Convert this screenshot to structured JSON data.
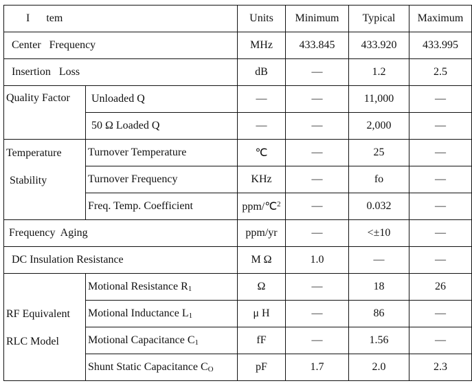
{
  "header": {
    "item": "I      tem",
    "units": "Units",
    "min": "Minimum",
    "typ": "Typical",
    "max": "Maximum"
  },
  "dash": "—",
  "rows": {
    "center_frequency": {
      "label": "Center   Frequency",
      "units": "MHz",
      "min": "433.845",
      "typ": "433.920",
      "max": "433.995"
    },
    "insertion_loss": {
      "label": "Insertion   Loss",
      "units": "dB",
      "min": "—",
      "typ": "1.2",
      "max": "2.5"
    },
    "quality_factor": {
      "group": "Quality Factor",
      "unloaded": {
        "label": "Unloaded Q",
        "units": "—",
        "min": "—",
        "typ": "11,000",
        "max": "—"
      },
      "loaded": {
        "label": "50 Ω Loaded Q",
        "units": "—",
        "min": "—",
        "typ": "2,000",
        "max": "—"
      }
    },
    "temperature_stability": {
      "group_line1": "Temperature",
      "group_line2": "Stability",
      "turnover_temperature": {
        "label": "Turnover Temperature",
        "units": "℃",
        "min": "—",
        "typ": "25",
        "max": "—"
      },
      "turnover_frequency": {
        "label": "Turnover Frequency",
        "units": "KHz",
        "min": "—",
        "typ": "fo",
        "max": "—"
      },
      "temp_coefficient": {
        "label": "Freq. Temp. Coefficient",
        "units": "ppm/℃",
        "units_sup": "2",
        "min": "—",
        "typ": "0.032",
        "max": "—"
      }
    },
    "frequency_aging": {
      "label": "Frequency  Aging",
      "units": "ppm/yr",
      "min": "—",
      "typ": "<±10",
      "max": "—"
    },
    "dc_insulation": {
      "label": "DC Insulation Resistance",
      "units": "M Ω",
      "min": "1.0",
      "typ": "—",
      "max": "—"
    },
    "rf_equivalent": {
      "group_line1": "RF Equivalent",
      "group_line2": "RLC Model",
      "r1": {
        "label": "Motional Resistance R",
        "sub": "1",
        "units": "Ω",
        "min": "—",
        "typ": "18",
        "max": "26"
      },
      "l1": {
        "label": "Motional Inductance L",
        "sub": "1",
        "units": "μ H",
        "min": "—",
        "typ": "86",
        "max": "—"
      },
      "c1": {
        "label": "Motional Capacitance C",
        "sub": "1",
        "units": "fF",
        "min": "—",
        "typ": "1.56",
        "max": "—"
      },
      "c0": {
        "label": "Shunt Static Capacitance C",
        "sub": "O",
        "units": "pF",
        "min": "1.7",
        "typ": "2.0",
        "max": "2.3"
      }
    }
  }
}
